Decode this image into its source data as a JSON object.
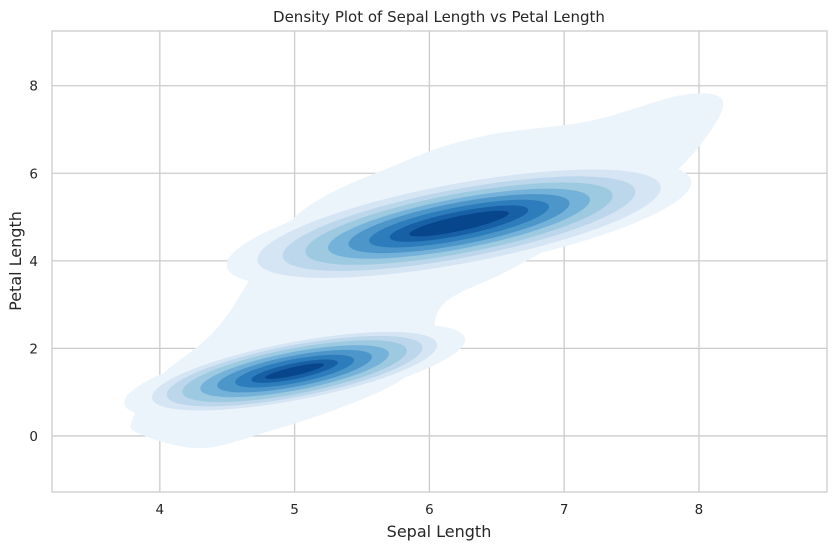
{
  "chart_data": {
    "type": "heatmap",
    "subtype": "filled-kde-contour",
    "title": "Density Plot of Sepal Length vs Petal Length",
    "xlabel": "Sepal Length",
    "ylabel": "Petal Length",
    "xlim": [
      3.2,
      8.95
    ],
    "ylim": [
      -1.28,
      9.25
    ],
    "x_ticks": [
      4,
      5,
      6,
      7,
      8
    ],
    "y_ticks": [
      0,
      2,
      4,
      6,
      8
    ],
    "grid": true,
    "colormap": "Blues",
    "level_colors": [
      "#ebf3fb",
      "#d5e5f4",
      "#bcd7eb",
      "#9dcae1",
      "#74b2d9",
      "#4d96c9",
      "#2d7cbb",
      "#1760a6",
      "#08468b"
    ],
    "clusters": [
      {
        "name": "",
        "center": [
          5.0,
          1.48
        ],
        "angle_deg": 38,
        "half_major": [
          0.27,
          0.39,
          0.53,
          0.69,
          0.84,
          1.0,
          1.14,
          1.27,
          1.52
        ],
        "half_minor": [
          0.08,
          0.15,
          0.23,
          0.3,
          0.37,
          0.44,
          0.5,
          0.56,
          0.66
        ]
      },
      {
        "name": "",
        "center": [
          6.22,
          4.85
        ],
        "angle_deg": 37,
        "half_major": [
          0.45,
          0.62,
          0.8,
          0.98,
          1.16,
          1.36,
          1.56,
          1.78,
          2.05
        ],
        "half_minor": [
          0.14,
          0.23,
          0.32,
          0.41,
          0.49,
          0.58,
          0.67,
          0.78,
          0.9
        ]
      }
    ],
    "outer_envelope": [
      [
        3.85,
        0.05
      ],
      [
        4.3,
        -0.28
      ],
      [
        4.8,
        0.1
      ],
      [
        5.3,
        0.6
      ],
      [
        5.75,
        1.2
      ],
      [
        6.0,
        1.9
      ],
      [
        6.1,
        3.0
      ],
      [
        6.6,
        3.8
      ],
      [
        7.3,
        5.0
      ],
      [
        7.85,
        6.1
      ],
      [
        8.18,
        7.55
      ],
      [
        7.9,
        7.8
      ],
      [
        7.2,
        7.2
      ],
      [
        6.4,
        6.85
      ],
      [
        5.8,
        6.25
      ],
      [
        5.0,
        5.0
      ],
      [
        4.45,
        2.55
      ],
      [
        4.0,
        1.35
      ],
      [
        3.8,
        0.4
      ]
    ],
    "colors": {
      "grid": "#cccccc",
      "frame": "#cccccc",
      "text": "#262626"
    }
  }
}
